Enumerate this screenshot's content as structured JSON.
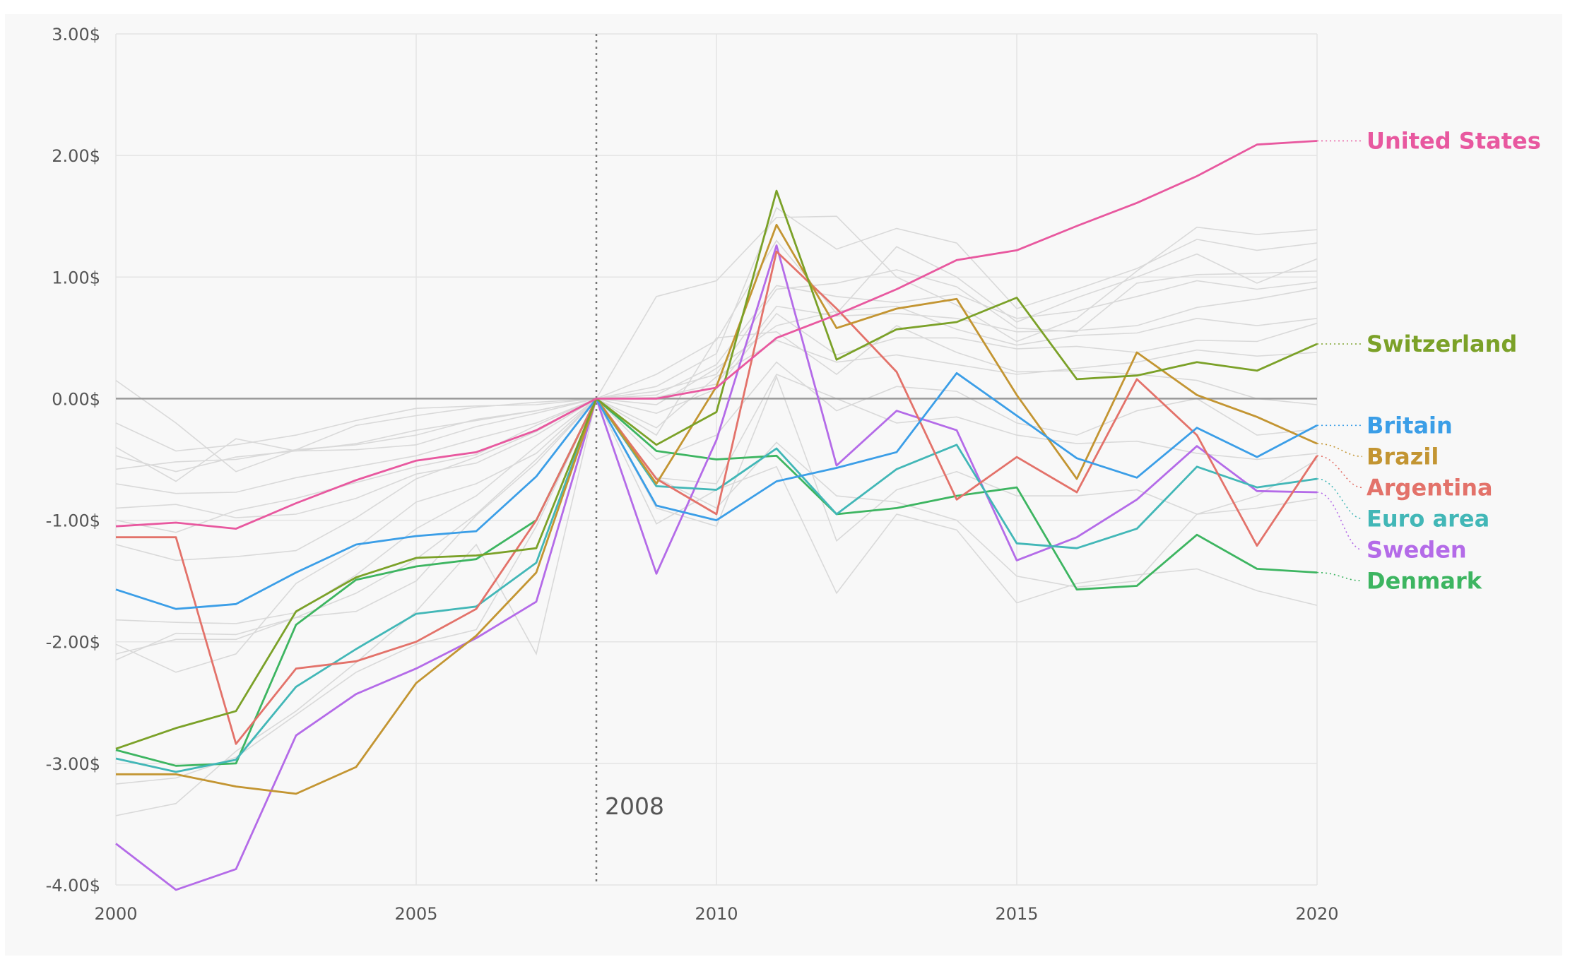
{
  "chart_data": {
    "type": "line",
    "title": "",
    "xlabel": "",
    "ylabel": "",
    "xlim": [
      2000,
      2020
    ],
    "ylim": [
      -4,
      3
    ],
    "x_ticks": [
      "2000",
      "2005",
      "2010",
      "2015",
      "2020"
    ],
    "y_ticks": [
      "3.00$",
      "2.00$",
      "1.00$",
      "0.00$",
      "-1.00$",
      "-2.00$",
      "-3.00$",
      "-4.00$"
    ],
    "grid": true,
    "legend": "direct labels at right end of lines",
    "annotation": {
      "x": 2008,
      "label": "2008",
      "style": "dotted vertical line"
    },
    "x": [
      2000,
      2001,
      2002,
      2003,
      2004,
      2005,
      2006,
      2007,
      2008,
      2009,
      2010,
      2011,
      2012,
      2013,
      2014,
      2015,
      2016,
      2017,
      2018,
      2019,
      2020
    ],
    "series": [
      {
        "name": "United States",
        "color": "#e8589f",
        "values": [
          -1.05,
          -1.02,
          -1.07,
          -0.86,
          -0.67,
          -0.51,
          -0.44,
          -0.26,
          0.0,
          0.0,
          0.09,
          0.5,
          0.69,
          0.9,
          1.14,
          1.22,
          1.42,
          1.61,
          1.83,
          2.09,
          2.12
        ]
      },
      {
        "name": "Switzerland",
        "color": "#7ba128",
        "values": [
          -2.88,
          -2.71,
          -2.57,
          -1.75,
          -1.47,
          -1.31,
          -1.29,
          -1.23,
          0.0,
          -0.38,
          -0.11,
          1.71,
          0.32,
          0.57,
          0.63,
          0.83,
          0.16,
          0.19,
          0.3,
          0.23,
          0.45
        ]
      },
      {
        "name": "Britain",
        "color": "#3b9ee7",
        "values": [
          -1.57,
          -1.73,
          -1.69,
          -1.43,
          -1.2,
          -1.13,
          -1.09,
          -0.64,
          0.0,
          -0.88,
          -1.0,
          -0.68,
          -0.57,
          -0.44,
          0.21,
          -0.14,
          -0.49,
          -0.65,
          -0.24,
          -0.48,
          -0.22
        ]
      },
      {
        "name": "Brazil",
        "color": "#c39532",
        "values": [
          -3.09,
          -3.09,
          -3.19,
          -3.25,
          -3.03,
          -2.34,
          -1.95,
          -1.43,
          0.0,
          -0.7,
          0.1,
          1.43,
          0.58,
          0.74,
          0.82,
          0.03,
          -0.66,
          0.38,
          0.03,
          -0.15,
          -0.37
        ]
      },
      {
        "name": "Argentina",
        "color": "#e3726a",
        "values": [
          -1.14,
          -1.14,
          -2.84,
          -2.22,
          -2.16,
          -2.0,
          -1.73,
          -1.0,
          0.0,
          -0.66,
          -0.95,
          1.21,
          0.74,
          0.22,
          -0.83,
          -0.48,
          -0.77,
          0.16,
          -0.3,
          -1.21,
          -0.47
        ]
      },
      {
        "name": "Euro area",
        "color": "#42b7b7",
        "values": [
          -2.96,
          -3.07,
          -2.97,
          -2.37,
          -2.06,
          -1.77,
          -1.71,
          -1.35,
          0.0,
          -0.72,
          -0.75,
          -0.41,
          -0.95,
          -0.58,
          -0.38,
          -1.19,
          -1.23,
          -1.07,
          -0.56,
          -0.73,
          -0.66
        ]
      },
      {
        "name": "Sweden",
        "color": "#b46be8",
        "values": [
          -3.66,
          -4.04,
          -3.87,
          -2.77,
          -2.43,
          -2.22,
          -1.97,
          -1.67,
          0.0,
          -1.44,
          -0.34,
          1.26,
          -0.55,
          -0.1,
          -0.26,
          -1.33,
          -1.14,
          -0.83,
          -0.39,
          -0.76,
          -0.77
        ]
      },
      {
        "name": "Denmark",
        "color": "#3db561",
        "values": [
          -2.89,
          -3.02,
          -3.0,
          -1.86,
          -1.49,
          -1.38,
          -1.32,
          -1.0,
          0.0,
          -0.43,
          -0.5,
          -0.47,
          -0.95,
          -0.9,
          -0.8,
          -0.73,
          -1.57,
          -1.54,
          -1.12,
          -1.4,
          -1.43
        ]
      }
    ],
    "background_series": [
      [
        0.15,
        -0.2,
        -0.6,
        -0.42,
        -0.22,
        -0.14,
        -0.07,
        -0.03,
        0.0,
        0.84,
        0.97,
        1.49,
        1.5,
        1.0,
        0.77,
        0.47,
        0.66,
        1.05,
        1.41,
        1.35,
        1.39
      ],
      [
        -0.2,
        -0.43,
        -0.38,
        -0.3,
        -0.18,
        -0.08,
        -0.06,
        -0.05,
        0.0,
        0.1,
        0.37,
        1.57,
        1.23,
        1.4,
        1.28,
        0.74,
        0.9,
        1.07,
        1.31,
        1.22,
        1.28
      ],
      [
        -0.4,
        -0.68,
        -0.33,
        -0.43,
        -0.42,
        -0.38,
        -0.23,
        -0.12,
        0.0,
        0.2,
        0.48,
        1.3,
        0.7,
        1.25,
        1.0,
        0.63,
        0.83,
        1.0,
        1.19,
        0.95,
        1.15
      ],
      [
        -0.47,
        -0.6,
        -0.48,
        -0.43,
        -0.37,
        -0.26,
        -0.18,
        -0.1,
        0.0,
        0.06,
        0.2,
        0.9,
        0.95,
        1.06,
        0.92,
        0.58,
        0.55,
        0.95,
        1.02,
        1.03,
        1.05
      ],
      [
        -0.58,
        -0.52,
        -0.5,
        -0.42,
        -0.38,
        -0.3,
        -0.17,
        -0.1,
        0.0,
        0.03,
        0.28,
        0.93,
        0.84,
        0.79,
        0.86,
        0.66,
        0.72,
        0.84,
        0.97,
        0.9,
        0.96
      ],
      [
        -0.7,
        -0.78,
        -0.77,
        -0.65,
        -0.56,
        -0.47,
        -0.33,
        -0.2,
        0.0,
        0.01,
        0.12,
        0.76,
        0.68,
        0.7,
        0.66,
        0.55,
        0.56,
        0.6,
        0.75,
        0.82,
        0.91
      ],
      [
        -0.9,
        -0.87,
        -0.98,
        -0.95,
        -0.82,
        -0.62,
        -0.53,
        -0.3,
        0.0,
        -0.05,
        0.25,
        0.6,
        0.72,
        0.76,
        0.57,
        0.44,
        0.52,
        0.54,
        0.66,
        0.6,
        0.66
      ],
      [
        -1.0,
        -1.1,
        -0.92,
        -0.82,
        -0.69,
        -0.56,
        -0.46,
        -0.22,
        0.0,
        -0.12,
        0.08,
        0.7,
        0.36,
        0.5,
        0.5,
        0.41,
        0.43,
        0.38,
        0.48,
        0.47,
        0.62
      ],
      [
        -1.2,
        -1.33,
        -1.3,
        -1.25,
        -0.98,
        -0.66,
        -0.48,
        -0.27,
        0.0,
        -0.24,
        0.18,
        0.48,
        0.3,
        0.36,
        0.28,
        0.2,
        0.25,
        0.3,
        0.4,
        0.35,
        0.38
      ],
      [
        -1.82,
        -1.84,
        -1.85,
        -1.76,
        -1.45,
        -1.07,
        -0.8,
        -0.39,
        0.0,
        -0.3,
        0.5,
        0.55,
        0.2,
        0.6,
        0.38,
        0.22,
        0.23,
        0.2,
        0.15,
        0.0,
        -0.05
      ],
      [
        -2.02,
        -2.25,
        -2.1,
        -1.52,
        -1.23,
        -0.85,
        -0.7,
        -0.45,
        0.0,
        -0.5,
        -0.3,
        0.3,
        -0.1,
        0.1,
        0.06,
        -0.2,
        -0.3,
        -0.1,
        0.0,
        -0.3,
        -0.25
      ],
      [
        -2.15,
        -1.93,
        -1.94,
        -1.8,
        -1.75,
        -1.5,
        -0.96,
        -0.53,
        0.0,
        -0.65,
        -0.7,
        0.2,
        0.0,
        -0.2,
        -0.15,
        -0.3,
        -0.37,
        -0.35,
        -0.45,
        -0.5,
        -0.45
      ],
      [
        -2.1,
        -1.98,
        -1.98,
        -1.8,
        -1.6,
        -1.32,
        -0.95,
        -0.5,
        0.0,
        -0.9,
        -1.05,
        0.18,
        -1.17,
        -0.75,
        -0.6,
        -0.8,
        -0.8,
        -0.75,
        -0.95,
        -0.9,
        -0.82
      ],
      [
        -3.43,
        -3.33,
        -2.9,
        -2.57,
        -2.17,
        -1.75,
        -1.2,
        -2.1,
        0.0,
        -1.03,
        -0.75,
        -0.56,
        -1.6,
        -0.95,
        -1.08,
        -1.68,
        -1.52,
        -1.45,
        -1.4,
        -1.58,
        -1.7
      ],
      [
        -3.17,
        -3.12,
        -2.95,
        -2.6,
        -2.25,
        -2.02,
        -1.9,
        -1.05,
        0.0,
        -0.65,
        -0.9,
        -0.36,
        -0.8,
        -0.85,
        -1.0,
        -1.46,
        -1.55,
        -1.5,
        -0.95,
        -0.8,
        -0.5
      ]
    ]
  }
}
